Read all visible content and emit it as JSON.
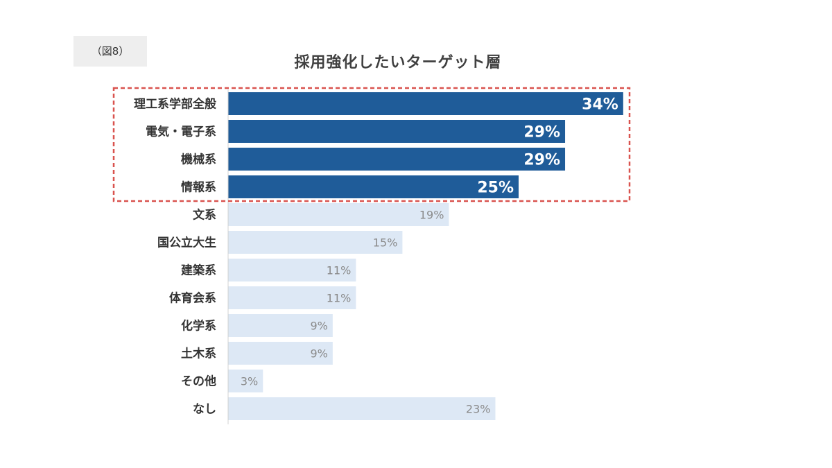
{
  "figure_label": "（図8）",
  "chart_data": {
    "type": "bar",
    "orientation": "horizontal",
    "title": "採用強化したいターゲット層",
    "categories": [
      "理工系学部全般",
      "電気・電子系",
      "機械系",
      "情報系",
      "文系",
      "国公立大生",
      "建築系",
      "体育会系",
      "化学系",
      "土木系",
      "その他",
      "なし"
    ],
    "values": [
      34,
      29,
      29,
      25,
      19,
      15,
      11,
      11,
      9,
      9,
      3,
      23
    ],
    "value_labels": [
      "34%",
      "29%",
      "29%",
      "25%",
      "19%",
      "15%",
      "11%",
      "11%",
      "9%",
      "9%",
      "3%",
      "23%"
    ],
    "unit": "%",
    "highlighted_categories": [
      "理工系学部全般",
      "電気・電子系",
      "機械系",
      "情報系"
    ],
    "colors": {
      "highlight_bar": "#1f5c99",
      "regular_bar": "#dde8f5",
      "highlight_label": "#ffffff",
      "regular_label": "#8a8a8a",
      "highlight_box": "#d9534f"
    },
    "grid": false,
    "legend": "none"
  }
}
